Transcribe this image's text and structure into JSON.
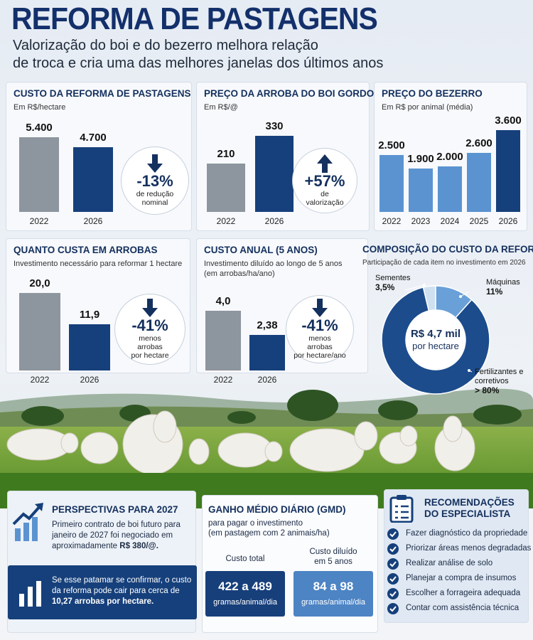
{
  "header": {
    "title": "REFORMA DE PASTAGENS",
    "subtitle": [
      "Valorização do boi e do bezerro melhora relação",
      "de troca e cria uma das melhores janelas dos últimos anos"
    ]
  },
  "chart_data": [
    {
      "type": "bar",
      "title": "CUSTO DA REFORMA DE PASTAGENS",
      "subtitle": [
        "Em R$/hectare"
      ],
      "categories": [
        "2022",
        "2026"
      ],
      "values": [
        5400,
        4700
      ],
      "value_labels": [
        "5.400",
        "4.700"
      ],
      "colors": [
        "#8d959e",
        "#16407b"
      ],
      "badge": {
        "direction": "down",
        "text": "-13%",
        "caption": [
          "de redução",
          "nominal"
        ]
      }
    },
    {
      "type": "bar",
      "title": "PREÇO DA ARROBA DO BOI GORDO",
      "subtitle": [
        "Em R$/@"
      ],
      "categories": [
        "2022",
        "2026"
      ],
      "values": [
        210,
        330
      ],
      "colors": [
        "#8d959e",
        "#16407b"
      ],
      "badge": {
        "direction": "up",
        "text": "+57%",
        "caption": [
          "de",
          "valorização"
        ]
      }
    },
    {
      "type": "bar",
      "title": "PREÇO DO BEZERRO",
      "subtitle": [
        "Em R$ por animal (média)"
      ],
      "categories": [
        "2022",
        "2023",
        "2024",
        "2025",
        "2026"
      ],
      "values": [
        2500,
        1900,
        2000,
        2600,
        3600
      ],
      "value_labels": [
        "2.500",
        "1.900",
        "2.000",
        "2.600",
        "3.600"
      ],
      "colors": [
        "#5b93d1",
        "#5b93d1",
        "#5b93d1",
        "#5b93d1",
        "#16407b"
      ]
    },
    {
      "type": "bar",
      "title": "QUANTO CUSTA EM ARROBAS",
      "subtitle": [
        "Investimento necessário para reformar 1 hectare"
      ],
      "categories": [
        "2022",
        "2026"
      ],
      "values": [
        20.0,
        11.9
      ],
      "value_labels": [
        "20,0",
        "11,9"
      ],
      "colors": [
        "#8d959e",
        "#16407b"
      ],
      "badge": {
        "direction": "down",
        "text": "-41%",
        "caption": [
          "menos",
          "arrobas",
          "por hectare"
        ]
      }
    },
    {
      "type": "bar",
      "title": "CUSTO ANUAL (5 ANOS)",
      "subtitle": [
        "Investimento diluído ao longo de 5 anos",
        "(em arrobas/ha/ano)"
      ],
      "categories": [
        "2022",
        "2026"
      ],
      "values": [
        4.0,
        2.38
      ],
      "value_labels": [
        "4,0",
        "2,38"
      ],
      "colors": [
        "#8d959e",
        "#16407b"
      ],
      "badge": {
        "direction": "down",
        "text": "-41%",
        "caption": [
          "menos",
          "arrobas",
          "por hectare/ano"
        ]
      }
    },
    {
      "type": "pie",
      "title": "COMPOSIÇÃO DO CUSTO DA REFORMA",
      "subtitle": [
        "Participação de cada item no investimento em 2026"
      ],
      "categories": [
        "Sementes",
        "Máquinas",
        "Fertilizantes e corretivos"
      ],
      "values": [
        3.5,
        11,
        80
      ],
      "value_labels": [
        "3,5%",
        "11%",
        "> 80%"
      ],
      "colors": [
        "#cfe0f1",
        "#6aa0d8",
        "#1c4c8c"
      ],
      "center": [
        "R$ 4,7 mil",
        "por hectare"
      ]
    }
  ],
  "perspectives": {
    "title": "PERSPECTIVAS PARA 2027",
    "text": "Primeiro contrato de boi futuro para janeiro de 2027 foi negociado em aproximadamente",
    "highlight": "R$ 380/@.",
    "note": "Se esse patamar se confirmar, o custo da reforma pode cair para cerca de",
    "note_highlight": "10,27 arrobas por hectare."
  },
  "gmd": {
    "title": "GANHO MÉDIO DIÁRIO (GMD)",
    "subtitle": [
      "para pagar o investimento",
      "(em pastagem com 2 animais/ha)"
    ],
    "columns": [
      {
        "label": "Custo total",
        "value": "422 a 489",
        "unit": "gramas/animal/dia"
      },
      {
        "label": "Custo diluído em 5 anos",
        "value": "84 a 98",
        "unit": "gramas/animal/dia"
      }
    ]
  },
  "recommendations": {
    "title": [
      "RECOMENDAÇÕES",
      "DO ESPECIALISTA"
    ],
    "items": [
      "Fazer diagnóstico da propriedade",
      "Priorizar áreas menos degradadas",
      "Realizar análise de solo",
      "Planejar a compra de insumos",
      "Escolher a forrageira adequada",
      "Contar com assistência técnica"
    ]
  }
}
